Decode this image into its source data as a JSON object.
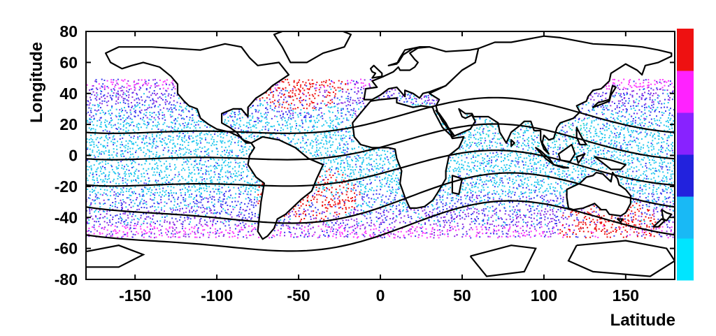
{
  "chart_data": {
    "type": "scatter",
    "title": "",
    "xlabel": "Latitude",
    "ylabel": "Longitude",
    "xlim": [
      -180,
      180
    ],
    "ylim": [
      -80,
      80
    ],
    "x_ticks": [
      "-150",
      "-100",
      "-50",
      "0",
      "50",
      "100",
      "150"
    ],
    "y_ticks": [
      "80",
      "60",
      "40",
      "20",
      "0",
      "-20",
      "-40",
      "-60",
      "-80"
    ],
    "x_tick_values": [
      -150,
      -100,
      -50,
      0,
      50,
      100,
      150
    ],
    "y_tick_values": [
      80,
      60,
      40,
      20,
      0,
      -20,
      -40,
      -60,
      -80
    ],
    "data_coverage": {
      "lat_min": -180,
      "lat_max": 180,
      "lon_min": -52,
      "lon_max": 50
    },
    "colorbar": {
      "colors": [
        "#00e5ff",
        "#19b9f5",
        "#2222dd",
        "#8822ff",
        "#ff22ff",
        "#ee1111"
      ],
      "labels": []
    },
    "point_colors": {
      "cyan": "#22c8ee",
      "blue": "#3a3aee",
      "purple": "#8a2be2",
      "magenta": "#ff33ff",
      "red": "#ee1111",
      "teal": "#33ddbb"
    },
    "hotspots": [
      {
        "x": -45,
        "y": -25,
        "color": "red"
      },
      {
        "x": -50,
        "y": 48,
        "color": "red"
      },
      {
        "x": 140,
        "y": -45,
        "color": "red"
      }
    ],
    "contours": [
      {
        "amp": 18,
        "offset": 22
      },
      {
        "amp": 18,
        "offset": 5
      },
      {
        "amp": 18,
        "offset": -12
      },
      {
        "amp": 18,
        "offset": -30
      },
      {
        "amp": 18,
        "offset": -48
      }
    ],
    "grid": false,
    "legend": "none"
  }
}
